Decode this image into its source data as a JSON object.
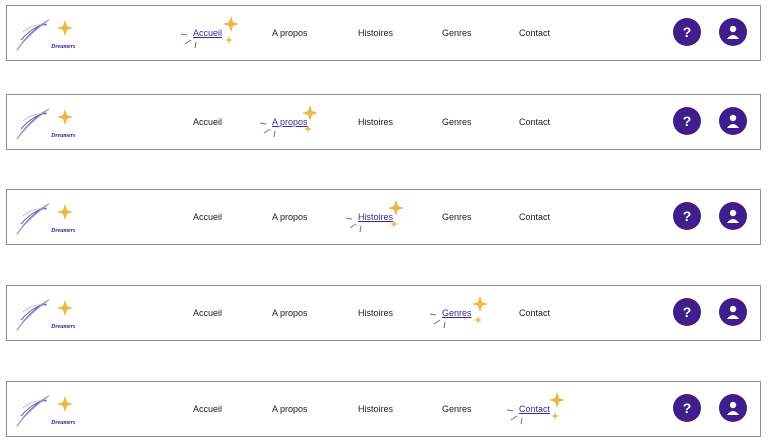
{
  "logo": {
    "text": "Dreamers",
    "icon": "moon-feather-logo-icon"
  },
  "nav": {
    "links": [
      "Accueil",
      "A propos",
      "Histoires",
      "Genres",
      "Contact"
    ]
  },
  "help_icon": {
    "glyph": "?",
    "name": "help-icon"
  },
  "user_icon": {
    "name": "user-icon"
  },
  "colors": {
    "accent": "#3f1e8c",
    "active_link": "#3b2a8f",
    "sparkle_gold": "#e8b84a",
    "border": "#8f8f8f"
  },
  "states": [
    {
      "active_index": 0
    },
    {
      "active_index": 1
    },
    {
      "active_index": 2
    },
    {
      "active_index": 3
    },
    {
      "active_index": 4
    }
  ]
}
